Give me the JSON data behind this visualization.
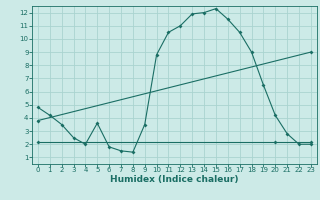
{
  "title": "",
  "xlabel": "Humidex (Indice chaleur)",
  "bg_color": "#cceae7",
  "grid_color": "#aad4d0",
  "line_color": "#1a6e64",
  "spine_color": "#1a6e64",
  "xlim": [
    -0.5,
    23.5
  ],
  "ylim": [
    0.5,
    12.5
  ],
  "xticks": [
    0,
    1,
    2,
    3,
    4,
    5,
    6,
    7,
    8,
    9,
    10,
    11,
    12,
    13,
    14,
    15,
    16,
    17,
    18,
    19,
    20,
    21,
    22,
    23
  ],
  "yticks": [
    1,
    2,
    3,
    4,
    5,
    6,
    7,
    8,
    9,
    10,
    11,
    12
  ],
  "line1_x": [
    0,
    1,
    2,
    3,
    4,
    5,
    6,
    7,
    8,
    9,
    10,
    11,
    12,
    13,
    14,
    15,
    16,
    17,
    18,
    19,
    20,
    21,
    22,
    23
  ],
  "line1_y": [
    4.8,
    4.2,
    3.5,
    2.5,
    2.0,
    3.6,
    1.8,
    1.5,
    1.4,
    3.5,
    8.8,
    10.5,
    11.0,
    11.9,
    12.0,
    12.3,
    11.5,
    10.5,
    9.0,
    6.5,
    4.2,
    2.8,
    2.0,
    2.0
  ],
  "line2_x": [
    0,
    23
  ],
  "line2_y": [
    3.8,
    9.0
  ],
  "line3_x": [
    0,
    20,
    23
  ],
  "line3_y": [
    2.2,
    2.2,
    2.2
  ],
  "tick_fontsize": 5.0,
  "xlabel_fontsize": 6.5
}
